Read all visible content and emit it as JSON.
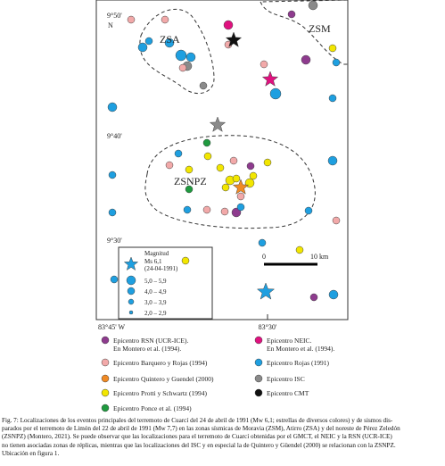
{
  "map": {
    "lat_labels": [
      "9°50'",
      "9°40'",
      "9°30'"
    ],
    "north": "N",
    "lon_labels": [
      "83°45' W",
      "83°30'"
    ],
    "zones": [
      "ZSA",
      "ZSM",
      "ZSNPZ"
    ],
    "inset": {
      "title": "Magnitud",
      "star_label": [
        "Ms 6,1",
        "(24-04-1991)"
      ],
      "sizes": [
        "5,0 – 5,9",
        "4,0 – 4,9",
        "3,0 – 3,9",
        "2,0 – 2,9"
      ]
    },
    "scale": [
      "0",
      "10 km"
    ]
  },
  "legend": {
    "left": [
      [
        "Epicentro RSN (UCR-ICE).",
        "En Montero et al. (1994)."
      ],
      [
        "Epicentro Barquero y Rojas (1994)"
      ],
      [
        "Epicentro Quintero y Guendel (2000)"
      ],
      [
        "Epicentro Protti y Schwartz (1994)"
      ],
      [
        "Epicentro Ponce et al. (1994)"
      ]
    ],
    "right": [
      [
        "Epicentro NEIC.",
        "En Montero et al. (1994)."
      ],
      [
        "Epicentro Rojas (1991)"
      ],
      [
        "Epicentro ISC"
      ],
      [
        "Epicentro CMT"
      ]
    ]
  },
  "caption": [
    "Fig. 7: Localizaciones de los eventos principales del terremoto de Cuarcí del 24 de abril de 1991 (Mw 6,1; estrellas de diversos colores) y de sismos dis-",
    "parados por el terremoto de Limón del 22 de abril de 1991 (Mw 7,7) en las zonas sísmicas de Moravia (ZSM), Atirro (ZSA) y del noreste de Pérez Zeledón",
    "(ZSNPZ) (Montero, 2021). Se puede observar que las localizaciones para el terremoto de Cuarcí obtenidas por el GMCT, el NEIC y la RSN (UCR-ICE)",
    "no tienen asociadas zonas de réplicas, mientras que las localizaciones del ISC y en especial la de Quintero y Güendel (2000) se relacionan con la ZSNPZ.",
    "Ubicación en figura 1."
  ]
}
